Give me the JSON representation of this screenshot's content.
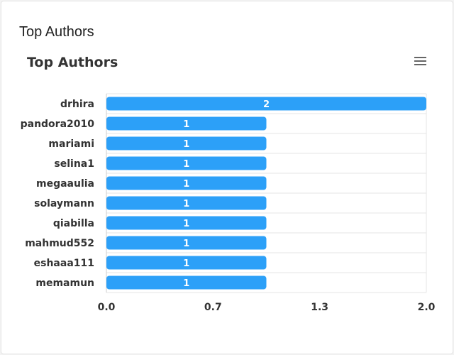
{
  "card": {
    "title": "Top Authors"
  },
  "toolbar": {
    "menu_icon": "hamburger-menu-icon"
  },
  "colors": {
    "bar": "#2ca0f8",
    "grid": "#e6e6e6",
    "label": "#333333",
    "bar_label": "#ffffff"
  },
  "chart_data": {
    "type": "bar",
    "orientation": "horizontal",
    "title": "Top Authors",
    "categories": [
      "drhira",
      "pandora2010",
      "mariami",
      "selina1",
      "megaaulia",
      "solaymann",
      "qiabilla",
      "mahmud552",
      "eshaaa111",
      "memamun"
    ],
    "values": [
      2,
      1,
      1,
      1,
      1,
      1,
      1,
      1,
      1,
      1
    ],
    "xlim": [
      0,
      2
    ],
    "xticks": [
      "0.0",
      "0.7",
      "1.3",
      "2.0"
    ],
    "grid": true,
    "data_labels": true
  }
}
